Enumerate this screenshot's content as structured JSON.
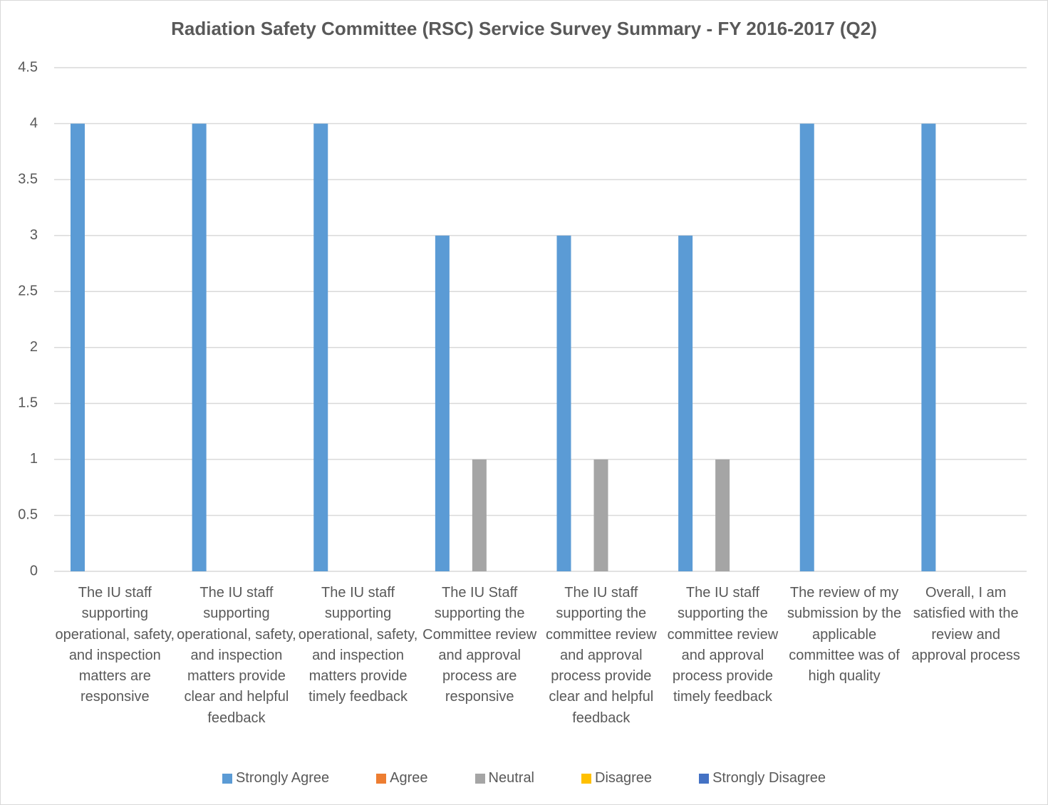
{
  "chart_data": {
    "type": "bar",
    "title": "Radiation Safety Committee (RSC) Service Survey Summary - FY 2016-2017 (Q2)",
    "categories": [
      "The IU staff supporting operational, safety, and inspection matters are responsive",
      "The IU staff supporting operational, safety, and inspection matters provide clear and helpful feedback",
      "The IU staff supporting operational, safety, and inspection matters provide timely feedback",
      "The IU Staff supporting the Committee review and approval process are responsive",
      "The IU staff supporting the committee review and approval process provide clear and helpful feedback",
      "The IU staff supporting the committee review and approval process provide timely feedback",
      "The review of my submission by the applicable committee was of high quality",
      "Overall, I am satisfied with the review and approval process"
    ],
    "series": [
      {
        "name": "Strongly Agree",
        "color": "#5b9bd5",
        "values": [
          4,
          4,
          4,
          3,
          3,
          3,
          4,
          4
        ]
      },
      {
        "name": "Agree",
        "color": "#ed7d31",
        "values": [
          0,
          0,
          0,
          0,
          0,
          0,
          0,
          0
        ]
      },
      {
        "name": "Neutral",
        "color": "#a5a5a5",
        "values": [
          0,
          0,
          0,
          1,
          1,
          1,
          0,
          0
        ]
      },
      {
        "name": "Disagree",
        "color": "#ffc000",
        "values": [
          0,
          0,
          0,
          0,
          0,
          0,
          0,
          0
        ]
      },
      {
        "name": "Strongly Disagree",
        "color": "#4472c4",
        "values": [
          0,
          0,
          0,
          0,
          0,
          0,
          0,
          0
        ]
      }
    ],
    "ylim": [
      0,
      4.5
    ],
    "yticks": [
      0,
      0.5,
      1,
      1.5,
      2,
      2.5,
      3,
      3.5,
      4,
      4.5
    ],
    "grid": true,
    "legend": "bottom"
  }
}
